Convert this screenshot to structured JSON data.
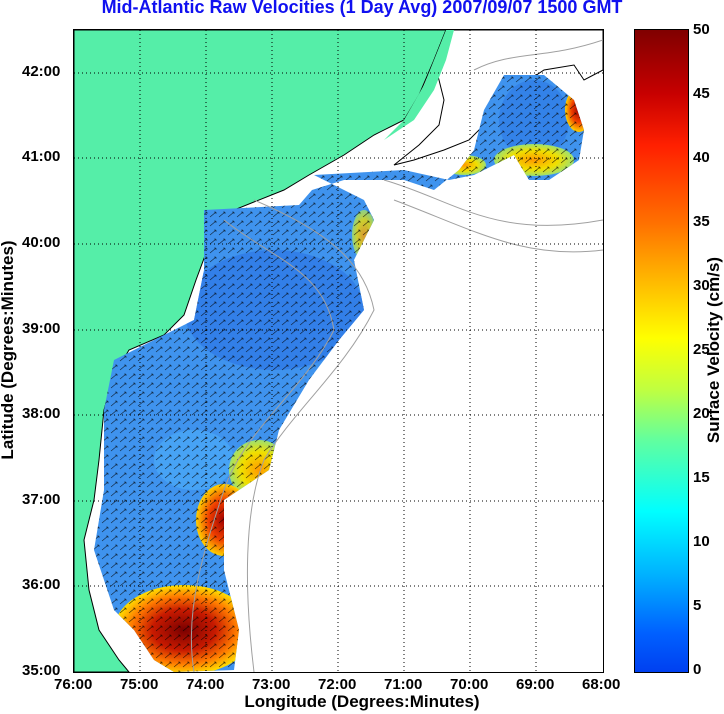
{
  "title": "Mid-Atlantic Raw Velocities (1 Day Avg) 2007/09/07 1500 GMT",
  "x_axis": {
    "label": "Longitude (Degrees:Minutes)",
    "ticks": [
      "76:00",
      "75:00",
      "74:00",
      "73:00",
      "72:00",
      "71:00",
      "70:00",
      "69:00",
      "68:00"
    ]
  },
  "y_axis": {
    "label": "Latitude (Degrees:Minutes)",
    "ticks": [
      "42:00",
      "41:00",
      "40:00",
      "39:00",
      "38:00",
      "37:00",
      "36:00",
      "35:00"
    ]
  },
  "colorbar": {
    "label": "Surface Velocity (cm/s)",
    "ticks": [
      "50",
      "45",
      "40",
      "35",
      "30",
      "25",
      "20",
      "15",
      "10",
      "5",
      "0"
    ],
    "range": [
      0,
      50
    ],
    "colormap": "jet"
  },
  "colors": {
    "land": "#55eea8",
    "coast_line": "#000000",
    "bathymetry": "#a0a0a0",
    "grid": "#000000",
    "low_velocity": "#3a8cf0",
    "high_velocity": "#8b0000",
    "title": "#1010f0"
  },
  "map_extent": {
    "lon_west": -76.0,
    "lon_east": -68.0,
    "lat_south": 35.0,
    "lat_north": 42.5
  }
}
